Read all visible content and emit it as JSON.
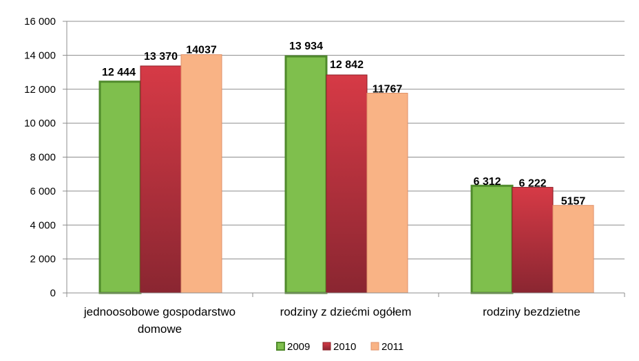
{
  "chart_data": {
    "type": "bar",
    "title": "",
    "xlabel": "",
    "ylabel": "",
    "ylim": [
      0,
      16000
    ],
    "yticks": [
      0,
      2000,
      4000,
      6000,
      8000,
      10000,
      12000,
      14000,
      16000
    ],
    "ytick_labels": [
      "0",
      "2 000",
      "4 000",
      "6 000",
      "8 000",
      "10 000",
      "12 000",
      "14 000",
      "16 000"
    ],
    "grid": true,
    "legend_position": "bottom",
    "categories": [
      [
        "jednoosobowe gospodarstwo",
        "domowe"
      ],
      [
        "rodziny z dziećmi ogółem"
      ],
      [
        "rodziny bezdzietne"
      ]
    ],
    "series": [
      {
        "name": "2009",
        "color": "#7fbf4d",
        "edge": "#4f8a2b",
        "values": [
          12444,
          13934,
          6312
        ],
        "labels": [
          "12 444",
          "13 934",
          "6 312"
        ]
      },
      {
        "name": "2010",
        "color": "#c8343f",
        "edge": "#8c1f26",
        "values": [
          13370,
          12842,
          6222
        ],
        "labels": [
          "13 370",
          "12 842",
          "6 222"
        ]
      },
      {
        "name": "2011",
        "color": "#f9b385",
        "edge": "#e0926a",
        "values": [
          14037,
          11767,
          5157
        ],
        "labels": [
          "14037",
          "11767",
          "5157"
        ]
      }
    ]
  }
}
